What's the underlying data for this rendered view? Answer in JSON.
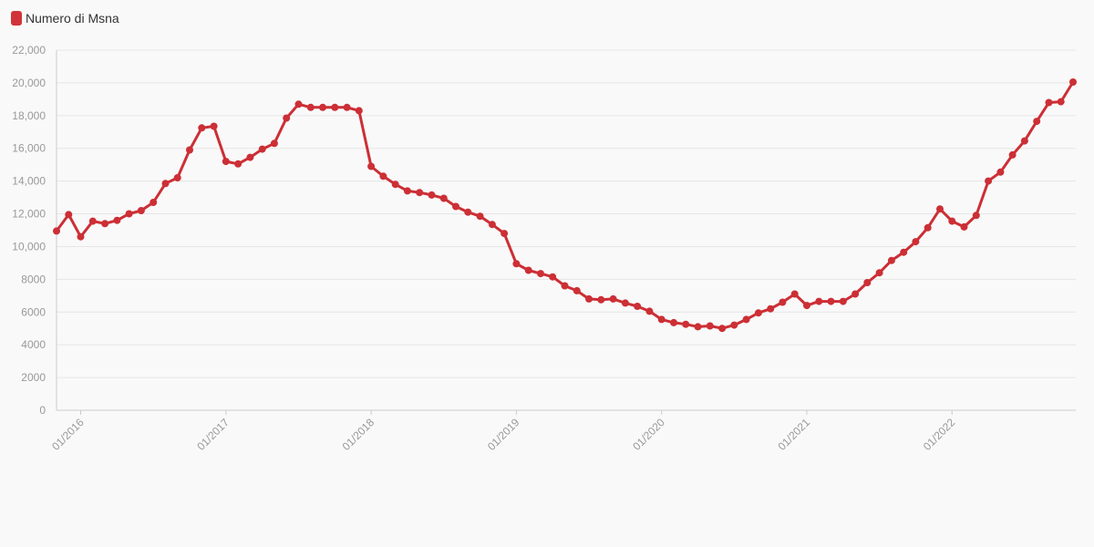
{
  "legend": {
    "label": "Numero di Msna",
    "color": "#d0343a"
  },
  "colors": {
    "series": "#cc2f35",
    "grid": "#e6e6e6",
    "tick_text": "#999999",
    "background": "#f9f9f9"
  },
  "chart_data": {
    "type": "line",
    "title": "",
    "xlabel": "",
    "ylabel": "",
    "ylim": [
      0,
      22000
    ],
    "grid": true,
    "legend_position": "top-left",
    "y_ticks": [
      0,
      2000,
      4000,
      6000,
      8000,
      10000,
      12000,
      14000,
      16000,
      18000,
      20000,
      22000
    ],
    "y_tick_labels": [
      "0",
      "2000",
      "4000",
      "6000",
      "8000",
      "10,000",
      "12,000",
      "14,000",
      "16,000",
      "18,000",
      "20,000",
      "22,000"
    ],
    "x_ticks": [
      "2016-01",
      "2017-01",
      "2018-01",
      "2019-01",
      "2020-01",
      "2021-01",
      "2022-01"
    ],
    "x_tick_labels": [
      "01/2016",
      "01/2017",
      "01/2018",
      "01/2019",
      "01/2020",
      "01/2021",
      "01/2022"
    ],
    "series": [
      {
        "name": "Numero di Msna",
        "x": [
          "2015-11",
          "2015-12",
          "2016-01",
          "2016-02",
          "2016-03",
          "2016-04",
          "2016-05",
          "2016-06",
          "2016-07",
          "2016-08",
          "2016-09",
          "2016-10",
          "2016-11",
          "2016-12",
          "2017-01",
          "2017-02",
          "2017-03",
          "2017-04",
          "2017-05",
          "2017-06",
          "2017-07",
          "2017-08",
          "2017-09",
          "2017-10",
          "2017-11",
          "2017-12",
          "2018-01",
          "2018-02",
          "2018-03",
          "2018-04",
          "2018-05",
          "2018-06",
          "2018-07",
          "2018-08",
          "2018-09",
          "2018-10",
          "2018-11",
          "2018-12",
          "2019-01",
          "2019-02",
          "2019-03",
          "2019-04",
          "2019-05",
          "2019-06",
          "2019-07",
          "2019-08",
          "2019-09",
          "2019-10",
          "2019-11",
          "2019-12",
          "2020-01",
          "2020-02",
          "2020-03",
          "2020-04",
          "2020-05",
          "2020-06",
          "2020-07",
          "2020-08",
          "2020-09",
          "2020-10",
          "2020-11",
          "2020-12",
          "2021-01",
          "2021-02",
          "2021-03",
          "2021-04",
          "2021-05",
          "2021-06",
          "2021-07",
          "2021-08",
          "2021-09",
          "2021-10",
          "2021-11",
          "2021-12",
          "2022-01",
          "2022-02",
          "2022-03",
          "2022-04",
          "2022-05",
          "2022-06",
          "2022-07",
          "2022-08",
          "2022-09",
          "2022-10",
          "2022-11"
        ],
        "values": [
          10950,
          11950,
          10600,
          11550,
          11400,
          11600,
          12000,
          12200,
          12700,
          13850,
          14200,
          15900,
          17250,
          17350,
          15200,
          15050,
          15450,
          15950,
          16300,
          17850,
          18700,
          18500,
          18500,
          18500,
          18500,
          18300,
          14900,
          14300,
          13800,
          13400,
          13300,
          13150,
          12950,
          12450,
          12100,
          11850,
          11350,
          10800,
          8950,
          8550,
          8350,
          8150,
          7600,
          7300,
          6800,
          6750,
          6800,
          6550,
          6350,
          6050,
          5550,
          5350,
          5250,
          5100,
          5150,
          5000,
          5200,
          5550,
          5950,
          6200,
          6600,
          7100,
          6400,
          6650,
          6650,
          6650,
          7100,
          7800,
          8400,
          9150,
          9650,
          10300,
          11150,
          12300,
          11550,
          11200,
          11900,
          14000,
          14550,
          15600,
          16450,
          17650,
          18800,
          18850,
          20050
        ]
      }
    ]
  }
}
